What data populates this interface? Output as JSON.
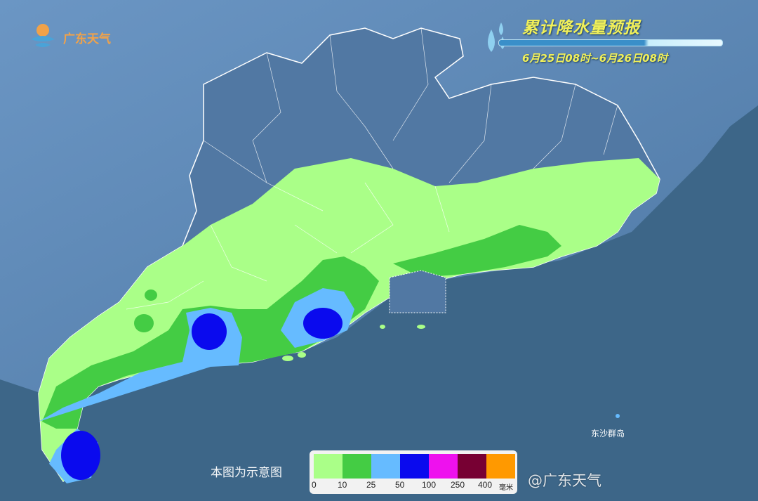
{
  "logo": {
    "text": "广东天气"
  },
  "title": {
    "main": "累计降水量预报",
    "period": "6月25日08时~6月26日08时"
  },
  "note": "本图为示意图",
  "island_label": "东沙群岛",
  "legend": {
    "unit": "毫米",
    "ticks": [
      "0",
      "10",
      "25",
      "50",
      "100",
      "250",
      "400"
    ],
    "colors": [
      "#aaff88",
      "#44cc44",
      "#66bbff",
      "#0a0aee",
      "#ee11ee",
      "#770033",
      "#ff9900"
    ]
  },
  "watermark": "@广东天气",
  "colors": {
    "sea": "#3d6688",
    "land": "#4f7aa8",
    "title": "#f1f05a"
  }
}
